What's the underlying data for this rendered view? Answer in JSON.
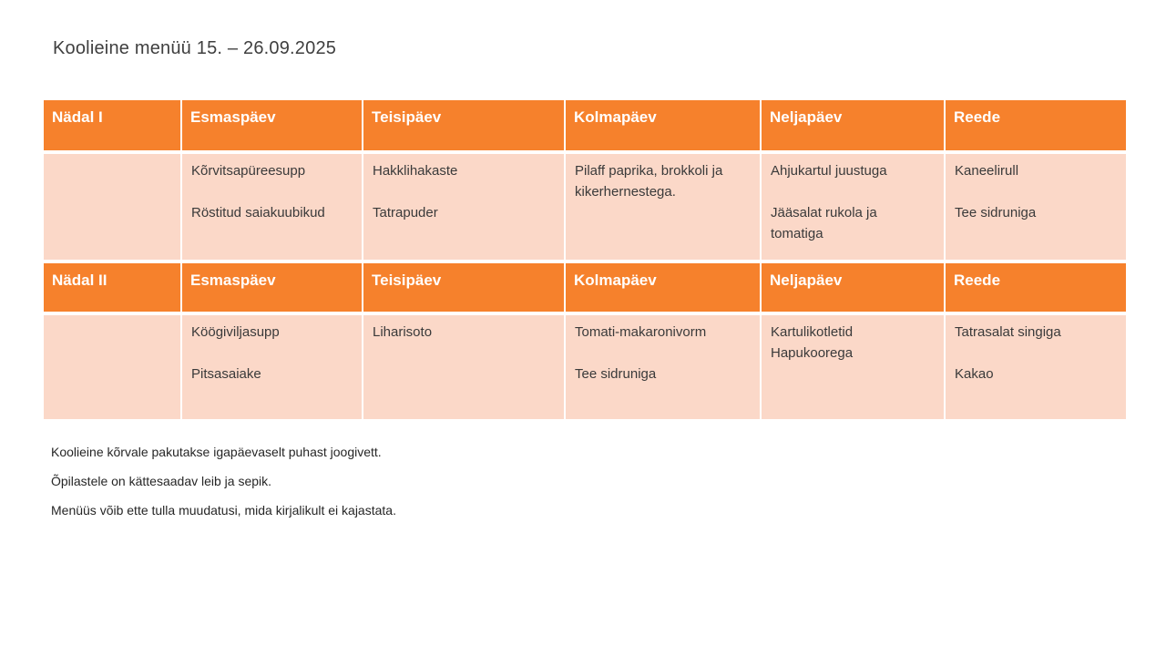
{
  "page": {
    "title": "Koolieine menüü 15. – 26.09.2025"
  },
  "colors": {
    "header_bg": "#F6812C",
    "header_text": "#FFFFFF",
    "row_bg": "#FBD8C8",
    "cell_text": "#3A3A3A",
    "page_bg": "#FFFFFF"
  },
  "table": {
    "week1": {
      "label": "Nädal I",
      "days": [
        "Esmaspäev",
        "Teisipäev",
        "Kolmapäev",
        "Neljapäev",
        "Reede"
      ],
      "menu": [
        "Kõrvitsapüreesupp\n\nRöstitud saiakuubikud",
        "Hakklihakaste\n\nTatrapuder",
        "Pilaff paprika, brokkoli ja\nkikerhernestega.",
        "Ahjukartul juustuga\n\nJääsalat rukola ja\ntomatiga",
        "Kaneelirull\n\nTee sidruniga"
      ]
    },
    "week2": {
      "label": "Nädal II",
      "days": [
        "Esmaspäev",
        "Teisipäev",
        "Kolmapäev",
        "Neljapäev",
        "Reede"
      ],
      "menu": [
        "Köögiviljasupp\n\nPitsasaiake",
        "Liharisoto",
        "Tomati-makaronivorm\n\nTee sidruniga",
        "Kartulikotletid\nHapukoorega",
        "Tatrasalat singiga\n\nKakao"
      ]
    }
  },
  "footer": {
    "lines": [
      "Koolieine kõrvale pakutakse igapäevaselt puhast joogivett.",
      "Õpilastele on kättesaadav leib ja sepik.",
      "Menüüs võib ette tulla muudatusi, mida kirjalikult ei kajastata."
    ]
  }
}
